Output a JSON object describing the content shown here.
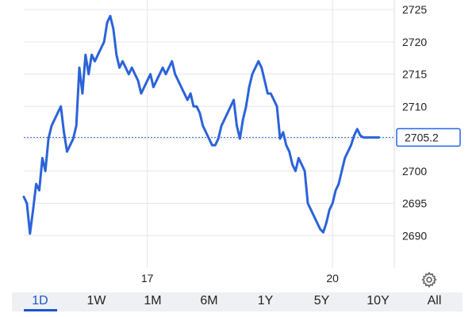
{
  "chart_data": {
    "type": "line",
    "y_ticks": [
      "2725",
      "2720",
      "2715",
      "2710",
      "2705",
      "2700",
      "2695",
      "2690"
    ],
    "ylim": [
      2685,
      2725.5
    ],
    "x_ticks": [
      {
        "label": "17",
        "x": 40
      },
      {
        "label": "20",
        "x": 100
      }
    ],
    "xlim": [
      0,
      120
    ],
    "current_price": 2705.2,
    "current_price_label": "2705.2",
    "grid": true,
    "line_color": "#2b63d9",
    "series": [
      {
        "x": [
          0,
          1,
          2,
          3,
          4,
          5,
          6,
          7,
          8,
          9,
          10,
          11,
          12,
          13,
          14,
          15,
          16,
          17,
          18,
          19,
          20,
          21,
          22,
          23,
          24,
          25,
          26,
          27,
          28,
          29,
          30,
          31,
          32,
          33,
          34,
          35,
          36,
          37,
          38,
          39,
          40,
          41,
          42,
          43,
          44,
          45,
          46,
          47,
          48,
          49,
          50,
          51,
          52,
          53,
          54,
          55,
          56,
          57,
          58,
          59,
          60,
          61,
          62,
          63,
          64,
          65,
          66,
          67,
          68,
          69,
          70,
          71,
          72,
          73,
          74,
          75,
          76,
          77,
          78,
          79,
          80,
          81,
          82,
          83,
          84,
          85,
          86,
          87,
          88,
          89,
          90,
          91,
          92,
          93,
          94,
          95,
          96,
          97,
          98,
          99,
          100,
          101,
          102,
          103,
          104,
          105,
          106,
          107,
          108,
          109,
          110,
          111,
          112,
          113,
          114,
          115
        ],
        "y": [
          2696,
          2695,
          2690.3,
          2694,
          2698,
          2697,
          2702,
          2700,
          2705,
          2707,
          2708,
          2709,
          2710,
          2706,
          2703,
          2704,
          2705,
          2707,
          2716,
          2712,
          2718,
          2715,
          2718,
          2717,
          2718,
          2719,
          2720,
          2723,
          2724,
          2722,
          2718,
          2716,
          2717,
          2716,
          2715,
          2716,
          2715,
          2714,
          2712,
          2713,
          2714,
          2715,
          2713,
          2714,
          2715,
          2716,
          2715,
          2716,
          2717,
          2715,
          2714,
          2713,
          2712,
          2711,
          2712,
          2710,
          2710,
          2709,
          2707,
          2706,
          2705,
          2704,
          2704,
          2705,
          2707,
          2708,
          2709,
          2710,
          2711,
          2707,
          2705,
          2708,
          2710,
          2713,
          2715,
          2716,
          2717,
          2716,
          2714,
          2712,
          2712,
          2711,
          2710,
          2705,
          2706,
          2704,
          2703,
          2701,
          2700,
          2702,
          2701,
          2700,
          2695,
          2694,
          2693,
          2692,
          2691,
          2690.5,
          2692,
          2694,
          2695,
          2697,
          2698,
          2700,
          2702,
          2703,
          2704,
          2705.5,
          2706.5,
          2705.5,
          2705.2,
          2705.2,
          2705.2,
          2705.2,
          2705.2,
          2705.2
        ]
      }
    ]
  },
  "range_tabs": [
    "1D",
    "1W",
    "1M",
    "6M",
    "1Y",
    "5Y",
    "10Y",
    "All"
  ],
  "active_range": "1D",
  "icons": {
    "settings": "gear-icon"
  }
}
